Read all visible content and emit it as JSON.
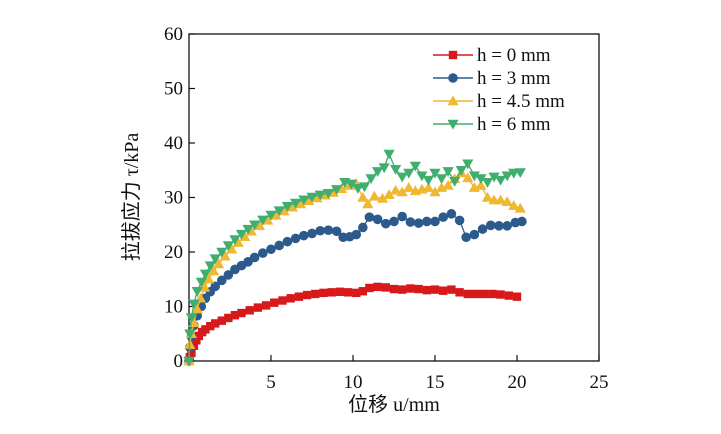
{
  "chart_data": {
    "type": "line",
    "xlabel": "位移 u/mm",
    "ylabel": "拉拔应力 τ/kPa",
    "xlim": [
      0,
      25
    ],
    "ylim": [
      0,
      60
    ],
    "x_ticks": [
      "5",
      "10",
      "15",
      "20",
      "25"
    ],
    "y_ticks": [
      "0",
      "10",
      "20",
      "30",
      "40",
      "50",
      "60"
    ],
    "grid": false,
    "legend_position": "top-right",
    "series": [
      {
        "name": "h = 0 mm",
        "color": "#d7191c",
        "marker": "square",
        "points": [
          [
            0.0,
            0.0
          ],
          [
            0.05,
            0.7
          ],
          [
            0.15,
            1.5
          ],
          [
            0.3,
            2.8
          ],
          [
            0.45,
            3.8
          ],
          [
            0.6,
            4.6
          ],
          [
            0.8,
            5.3
          ],
          [
            1.0,
            5.8
          ],
          [
            1.3,
            6.4
          ],
          [
            1.6,
            6.9
          ],
          [
            2.0,
            7.4
          ],
          [
            2.4,
            7.9
          ],
          [
            2.8,
            8.4
          ],
          [
            3.2,
            8.8
          ],
          [
            3.7,
            9.3
          ],
          [
            4.2,
            9.8
          ],
          [
            4.7,
            10.2
          ],
          [
            5.2,
            10.7
          ],
          [
            5.7,
            11.1
          ],
          [
            6.2,
            11.5
          ],
          [
            6.7,
            11.8
          ],
          [
            7.2,
            12.1
          ],
          [
            7.7,
            12.3
          ],
          [
            8.2,
            12.5
          ],
          [
            8.7,
            12.6
          ],
          [
            9.2,
            12.7
          ],
          [
            9.7,
            12.6
          ],
          [
            10.2,
            12.5
          ],
          [
            10.6,
            12.8
          ],
          [
            11.0,
            13.4
          ],
          [
            11.5,
            13.6
          ],
          [
            12.0,
            13.5
          ],
          [
            12.5,
            13.2
          ],
          [
            13.0,
            13.1
          ],
          [
            13.5,
            13.3
          ],
          [
            14.0,
            13.2
          ],
          [
            14.5,
            13.0
          ],
          [
            15.0,
            13.1
          ],
          [
            15.5,
            12.9
          ],
          [
            16.0,
            13.1
          ],
          [
            16.5,
            12.6
          ],
          [
            17.0,
            12.3
          ],
          [
            17.5,
            12.3
          ],
          [
            18.0,
            12.3
          ],
          [
            18.5,
            12.3
          ],
          [
            19.0,
            12.2
          ],
          [
            19.5,
            12.0
          ],
          [
            20.0,
            11.8
          ]
        ]
      },
      {
        "name": "h = 3 mm",
        "color": "#2c5a8c",
        "marker": "circle",
        "points": [
          [
            0.0,
            0.0
          ],
          [
            0.05,
            2.5
          ],
          [
            0.15,
            4.5
          ],
          [
            0.3,
            6.5
          ],
          [
            0.5,
            8.3
          ],
          [
            0.75,
            10.0
          ],
          [
            1.0,
            11.5
          ],
          [
            1.3,
            12.7
          ],
          [
            1.6,
            13.7
          ],
          [
            2.0,
            14.8
          ],
          [
            2.4,
            15.8
          ],
          [
            2.8,
            16.8
          ],
          [
            3.2,
            17.5
          ],
          [
            3.6,
            18.2
          ],
          [
            4.0,
            19.0
          ],
          [
            4.5,
            19.8
          ],
          [
            5.0,
            20.5
          ],
          [
            5.5,
            21.2
          ],
          [
            6.0,
            21.9
          ],
          [
            6.5,
            22.5
          ],
          [
            7.0,
            23.0
          ],
          [
            7.5,
            23.4
          ],
          [
            8.0,
            23.9
          ],
          [
            8.5,
            24.0
          ],
          [
            9.0,
            23.8
          ],
          [
            9.4,
            22.7
          ],
          [
            9.8,
            22.8
          ],
          [
            10.2,
            23.2
          ],
          [
            10.6,
            24.5
          ],
          [
            11.0,
            26.4
          ],
          [
            11.5,
            26.0
          ],
          [
            12.0,
            25.2
          ],
          [
            12.5,
            25.6
          ],
          [
            13.0,
            26.5
          ],
          [
            13.5,
            25.5
          ],
          [
            14.0,
            25.3
          ],
          [
            14.5,
            25.6
          ],
          [
            15.0,
            25.6
          ],
          [
            15.5,
            26.4
          ],
          [
            16.0,
            27.0
          ],
          [
            16.5,
            25.8
          ],
          [
            16.9,
            22.7
          ],
          [
            17.4,
            23.2
          ],
          [
            17.9,
            24.2
          ],
          [
            18.4,
            24.9
          ],
          [
            18.9,
            24.8
          ],
          [
            19.4,
            24.8
          ],
          [
            19.9,
            25.4
          ],
          [
            20.3,
            25.6
          ]
        ]
      },
      {
        "name": "h = 4.5 mm",
        "color": "#f0b731",
        "marker": "triangle-up",
        "points": [
          [
            0.0,
            0.0
          ],
          [
            0.05,
            3.0
          ],
          [
            0.15,
            5.0
          ],
          [
            0.3,
            7.0
          ],
          [
            0.5,
            9.5
          ],
          [
            0.7,
            11.5
          ],
          [
            0.95,
            13.5
          ],
          [
            1.2,
            15.0
          ],
          [
            1.5,
            16.5
          ],
          [
            1.8,
            17.8
          ],
          [
            2.2,
            19.2
          ],
          [
            2.6,
            20.5
          ],
          [
            3.0,
            21.7
          ],
          [
            3.4,
            22.8
          ],
          [
            3.8,
            23.8
          ],
          [
            4.3,
            24.8
          ],
          [
            4.8,
            25.8
          ],
          [
            5.3,
            26.7
          ],
          [
            5.8,
            27.5
          ],
          [
            6.3,
            28.2
          ],
          [
            6.8,
            28.8
          ],
          [
            7.3,
            29.4
          ],
          [
            7.8,
            29.9
          ],
          [
            8.3,
            30.4
          ],
          [
            8.8,
            30.9
          ],
          [
            9.3,
            31.6
          ],
          [
            9.8,
            32.2
          ],
          [
            10.2,
            32.5
          ],
          [
            10.6,
            30.0
          ],
          [
            10.9,
            28.8
          ],
          [
            11.3,
            30.2
          ],
          [
            11.8,
            29.8
          ],
          [
            12.2,
            30.5
          ],
          [
            12.6,
            31.3
          ],
          [
            13.0,
            31.0
          ],
          [
            13.4,
            31.8
          ],
          [
            13.8,
            31.2
          ],
          [
            14.2,
            31.5
          ],
          [
            14.6,
            31.8
          ],
          [
            15.0,
            31.0
          ],
          [
            15.4,
            31.8
          ],
          [
            15.8,
            32.2
          ],
          [
            16.2,
            33.4
          ],
          [
            16.6,
            34.5
          ],
          [
            17.0,
            33.6
          ],
          [
            17.4,
            31.8
          ],
          [
            17.8,
            32.2
          ],
          [
            18.2,
            30.0
          ],
          [
            18.6,
            29.5
          ],
          [
            19.0,
            29.5
          ],
          [
            19.4,
            29.2
          ],
          [
            19.8,
            28.5
          ],
          [
            20.2,
            28.0
          ]
        ]
      },
      {
        "name": "h = 6 mm",
        "color": "#3fae6e",
        "marker": "triangle-down",
        "points": [
          [
            0.0,
            0.0
          ],
          [
            0.05,
            5.0
          ],
          [
            0.15,
            8.0
          ],
          [
            0.3,
            10.5
          ],
          [
            0.5,
            12.8
          ],
          [
            0.75,
            14.5
          ],
          [
            1.0,
            16.0
          ],
          [
            1.3,
            17.5
          ],
          [
            1.6,
            18.8
          ],
          [
            2.0,
            20.0
          ],
          [
            2.4,
            21.2
          ],
          [
            2.8,
            22.3
          ],
          [
            3.2,
            23.3
          ],
          [
            3.6,
            24.2
          ],
          [
            4.0,
            25.0
          ],
          [
            4.5,
            25.9
          ],
          [
            5.0,
            26.8
          ],
          [
            5.5,
            27.6
          ],
          [
            6.0,
            28.4
          ],
          [
            6.5,
            29.0
          ],
          [
            7.0,
            29.6
          ],
          [
            7.5,
            30.1
          ],
          [
            8.0,
            30.5
          ],
          [
            8.5,
            30.8
          ],
          [
            9.0,
            31.5
          ],
          [
            9.5,
            32.8
          ],
          [
            9.9,
            32.5
          ],
          [
            10.3,
            31.7
          ],
          [
            10.7,
            32.0
          ],
          [
            11.1,
            33.5
          ],
          [
            11.5,
            34.8
          ],
          [
            11.9,
            35.5
          ],
          [
            12.2,
            38.0
          ],
          [
            12.6,
            35.2
          ],
          [
            13.0,
            33.8
          ],
          [
            13.4,
            34.5
          ],
          [
            13.8,
            35.8
          ],
          [
            14.2,
            34.0
          ],
          [
            14.6,
            33.2
          ],
          [
            15.0,
            34.5
          ],
          [
            15.4,
            33.5
          ],
          [
            15.8,
            34.8
          ],
          [
            16.2,
            33.0
          ],
          [
            16.6,
            35.0
          ],
          [
            17.0,
            36.2
          ],
          [
            17.4,
            34.0
          ],
          [
            17.8,
            33.5
          ],
          [
            18.2,
            32.8
          ],
          [
            18.6,
            33.8
          ],
          [
            19.0,
            33.2
          ],
          [
            19.4,
            34.0
          ],
          [
            19.8,
            34.5
          ],
          [
            20.2,
            34.6
          ]
        ]
      }
    ]
  }
}
